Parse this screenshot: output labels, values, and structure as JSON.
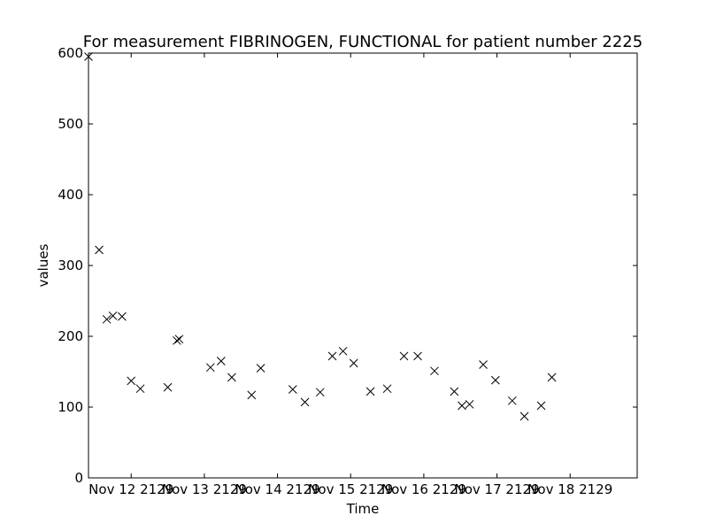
{
  "chart_data": {
    "type": "scatter",
    "title": "For measurement FIBRINOGEN, FUNCTIONAL for patient number 2225",
    "xlabel": "Time",
    "ylabel": "values",
    "ylim": [
      0,
      600
    ],
    "xlim": [
      "2129-11-11 10:00",
      "2129-11-18 22:00"
    ],
    "yticks": [
      0,
      100,
      200,
      300,
      400,
      500,
      600
    ],
    "xticks": [
      {
        "value": "2129-11-12 00:00",
        "label": "Nov 12 2129"
      },
      {
        "value": "2129-11-13 00:00",
        "label": "Nov 13 2129"
      },
      {
        "value": "2129-11-14 00:00",
        "label": "Nov 14 2129"
      },
      {
        "value": "2129-11-15 00:00",
        "label": "Nov 15 2129"
      },
      {
        "value": "2129-11-16 00:00",
        "label": "Nov 16 2129"
      },
      {
        "value": "2129-11-17 00:00",
        "label": "Nov 17 2129"
      },
      {
        "value": "2129-11-18 00:00",
        "label": "Nov 18 2129"
      }
    ],
    "marker": "x",
    "grid": false,
    "series": [
      {
        "points": [
          {
            "x": "2129-11-11 10:00",
            "y": 595
          },
          {
            "x": "2129-11-11 13:30",
            "y": 322
          },
          {
            "x": "2129-11-11 16:00",
            "y": 224
          },
          {
            "x": "2129-11-11 18:00",
            "y": 229
          },
          {
            "x": "2129-11-11 21:00",
            "y": 228
          },
          {
            "x": "2129-11-12 00:00",
            "y": 137
          },
          {
            "x": "2129-11-12 03:00",
            "y": 126
          },
          {
            "x": "2129-11-12 12:00",
            "y": 128
          },
          {
            "x": "2129-11-12 15:00",
            "y": 194
          },
          {
            "x": "2129-11-12 15:45",
            "y": 196
          },
          {
            "x": "2129-11-13 02:00",
            "y": 156
          },
          {
            "x": "2129-11-13 05:30",
            "y": 165
          },
          {
            "x": "2129-11-13 09:00",
            "y": 142
          },
          {
            "x": "2129-11-13 15:30",
            "y": 117
          },
          {
            "x": "2129-11-13 18:30",
            "y": 155
          },
          {
            "x": "2129-11-14 05:00",
            "y": 125
          },
          {
            "x": "2129-11-14 09:00",
            "y": 107
          },
          {
            "x": "2129-11-14 14:00",
            "y": 121
          },
          {
            "x": "2129-11-14 18:00",
            "y": 172
          },
          {
            "x": "2129-11-14 21:30",
            "y": 179
          },
          {
            "x": "2129-11-15 01:00",
            "y": 162
          },
          {
            "x": "2129-11-15 06:30",
            "y": 122
          },
          {
            "x": "2129-11-15 12:00",
            "y": 126
          },
          {
            "x": "2129-11-15 17:30",
            "y": 172
          },
          {
            "x": "2129-11-15 22:00",
            "y": 172
          },
          {
            "x": "2129-11-16 03:30",
            "y": 151
          },
          {
            "x": "2129-11-16 10:00",
            "y": 122
          },
          {
            "x": "2129-11-16 12:30",
            "y": 102
          },
          {
            "x": "2129-11-16 15:00",
            "y": 104
          },
          {
            "x": "2129-11-16 19:30",
            "y": 160
          },
          {
            "x": "2129-11-16 23:30",
            "y": 138
          },
          {
            "x": "2129-11-17 05:00",
            "y": 109
          },
          {
            "x": "2129-11-17 09:00",
            "y": 87
          },
          {
            "x": "2129-11-17 14:30",
            "y": 102
          },
          {
            "x": "2129-11-17 18:00",
            "y": 142
          }
        ]
      }
    ]
  }
}
